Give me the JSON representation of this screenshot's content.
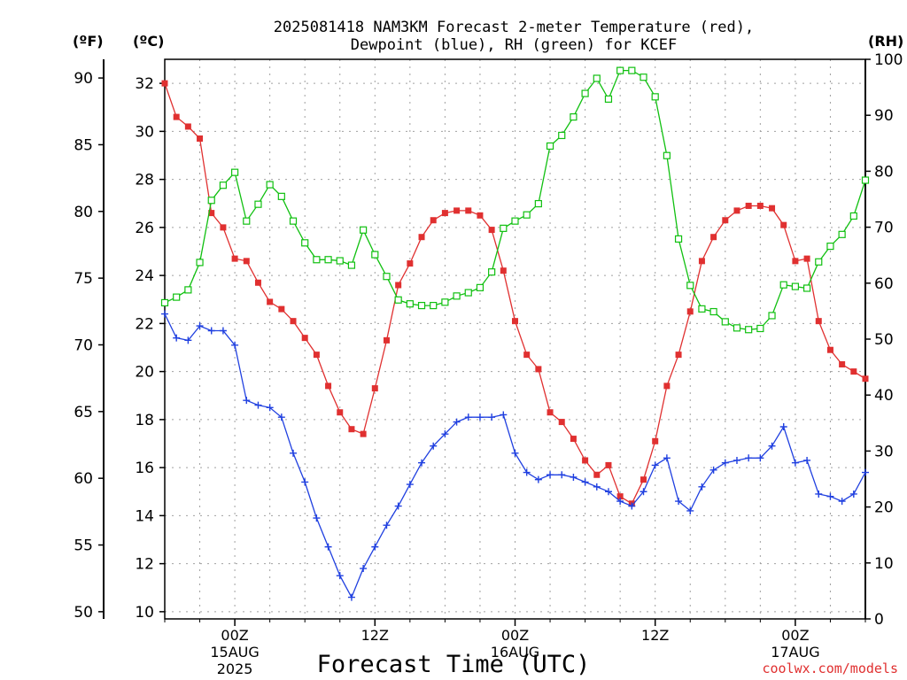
{
  "chart_data": {
    "type": "line",
    "title_line1": "2025081418 NAM3KM Forecast 2-meter Temperature (red),",
    "title_line2": "Dewpoint (blue), RH (green) for KCEF",
    "xlabel": "Forecast Time (UTC)",
    "left_outer_unit": "(ºF)",
    "left_inner_unit": "(ºC)",
    "right_unit": "(RH)",
    "credit": "coolwx.com/models",
    "grid": true,
    "x_range_hours": [
      0,
      60
    ],
    "y_range_c": [
      9.7,
      33.0
    ],
    "y_range_f": [
      49.46,
      91.4
    ],
    "y_range_rh": [
      0,
      100
    ],
    "x_ticks": [
      {
        "h": 6,
        "label1": "00Z",
        "label2": "15AUG",
        "label3": "2025"
      },
      {
        "h": 18,
        "label1": "12Z",
        "label2": "",
        "label3": ""
      },
      {
        "h": 30,
        "label1": "00Z",
        "label2": "16AUG",
        "label3": ""
      },
      {
        "h": 42,
        "label1": "12Z",
        "label2": "",
        "label3": ""
      },
      {
        "h": 54,
        "label1": "00Z",
        "label2": "17AUG",
        "label3": ""
      }
    ],
    "y_ticks_c": [
      10,
      12,
      14,
      16,
      18,
      20,
      22,
      24,
      26,
      28,
      30,
      32
    ],
    "y_ticks_f": [
      50,
      55,
      60,
      65,
      70,
      75,
      80,
      85,
      90
    ],
    "y_ticks_rh": [
      0,
      10,
      20,
      30,
      40,
      50,
      60,
      70,
      80,
      90,
      100
    ],
    "hours": [
      0,
      1,
      2,
      3,
      4,
      5,
      6,
      7,
      8,
      9,
      10,
      11,
      12,
      13,
      14,
      15,
      16,
      17,
      18,
      19,
      20,
      21,
      22,
      23,
      24,
      25,
      26,
      27,
      28,
      29,
      30,
      31,
      32,
      33,
      34,
      35,
      36,
      37,
      38,
      39,
      40,
      41,
      42,
      43,
      44,
      45,
      46,
      47,
      48,
      49,
      50,
      51,
      52,
      53,
      54,
      55,
      56,
      57,
      58,
      59,
      60
    ],
    "series": [
      {
        "name": "Temperature",
        "unit": "C",
        "color": "#e03030",
        "marker": "filled-square",
        "values": [
          32.0,
          30.6,
          30.2,
          29.7,
          26.6,
          26.0,
          24.7,
          24.6,
          23.7,
          22.9,
          22.6,
          22.1,
          21.4,
          20.7,
          19.4,
          18.3,
          17.6,
          17.4,
          19.3,
          21.3,
          23.6,
          24.5,
          25.6,
          26.3,
          26.6,
          26.7,
          26.7,
          26.5,
          25.9,
          24.2,
          22.1,
          20.7,
          20.1,
          18.3,
          17.9,
          17.2,
          16.3,
          15.7,
          16.1,
          14.8,
          14.5,
          15.5,
          17.1,
          19.4,
          20.7,
          22.5,
          24.6,
          25.6,
          26.3,
          26.7,
          26.9,
          26.9,
          26.8,
          26.1,
          24.6,
          24.7,
          22.1,
          20.9,
          20.3,
          20.0,
          19.7
        ]
      },
      {
        "name": "Dewpoint",
        "unit": "C",
        "color": "#2040e0",
        "marker": "plus",
        "values": [
          22.4,
          21.4,
          21.3,
          21.9,
          21.7,
          21.7,
          21.1,
          18.8,
          18.6,
          18.5,
          18.1,
          16.6,
          15.4,
          13.9,
          12.7,
          11.5,
          10.6,
          11.8,
          12.7,
          13.6,
          14.4,
          15.3,
          16.2,
          16.9,
          17.4,
          17.9,
          18.1,
          18.1,
          18.1,
          18.2,
          16.6,
          15.8,
          15.5,
          15.7,
          15.7,
          15.6,
          15.4,
          15.2,
          15.0,
          14.6,
          14.4,
          15.0,
          16.1,
          16.4,
          14.6,
          14.2,
          15.2,
          15.9,
          16.2,
          16.3,
          16.4,
          16.4,
          16.9,
          17.7,
          16.2,
          16.3,
          14.9,
          14.8,
          14.6,
          14.9,
          15.8
        ]
      },
      {
        "name": "RH",
        "unit": "%",
        "color": "#10c010",
        "marker": "open-square",
        "values": [
          56.5,
          57.5,
          58.8,
          63.7,
          74.8,
          77.5,
          79.8,
          71.1,
          74.1,
          77.6,
          75.5,
          71.1,
          67.2,
          64.2,
          64.2,
          64.0,
          63.2,
          69.5,
          65.1,
          61.2,
          57.0,
          56.3,
          56.0,
          56.0,
          56.6,
          57.7,
          58.3,
          59.2,
          62.0,
          69.8,
          71.1,
          72.2,
          74.2,
          84.5,
          86.4,
          89.7,
          93.9,
          96.6,
          92.9,
          98.0,
          98.0,
          96.8,
          93.3,
          82.8,
          67.9,
          59.6,
          55.4,
          54.9,
          53.1,
          52.0,
          51.7,
          51.9,
          54.2,
          59.7,
          59.4,
          59.1,
          63.8,
          66.6,
          68.7,
          72.0,
          78.4
        ]
      }
    ]
  }
}
